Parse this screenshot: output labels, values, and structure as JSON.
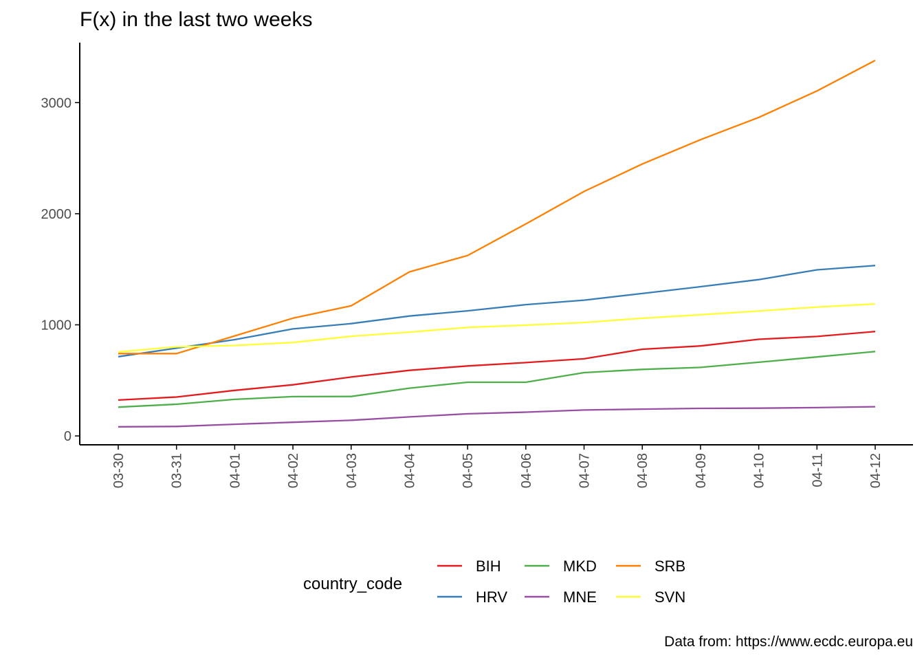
{
  "chart_data": {
    "type": "line",
    "title": "F(x) in the last two weeks",
    "xlabel": "",
    "ylabel": "",
    "x": [
      "03-30",
      "03-31",
      "04-01",
      "04-02",
      "04-03",
      "04-04",
      "04-05",
      "04-06",
      "04-07",
      "04-08",
      "04-09",
      "04-10",
      "04-11",
      "04-12"
    ],
    "ylim": [
      -80,
      3540
    ],
    "yticks": [
      0,
      1000,
      2000,
      3000
    ],
    "grid": false,
    "legend_title": "country_code",
    "legend_position": "bottom",
    "series": [
      {
        "name": "BIH",
        "color": "#e41a1c",
        "values": [
          323,
          350,
          410,
          460,
          530,
          590,
          630,
          660,
          694,
          780,
          810,
          870,
          895,
          940
        ]
      },
      {
        "name": "HRV",
        "color": "#377eb8",
        "values": [
          713,
          790,
          867,
          963,
          1011,
          1079,
          1126,
          1182,
          1222,
          1282,
          1343,
          1407,
          1495,
          1534
        ]
      },
      {
        "name": "MKD",
        "color": "#4daf4a",
        "values": [
          259,
          285,
          329,
          354,
          355,
          430,
          483,
          483,
          570,
          599,
          617,
          663,
          711,
          760
        ]
      },
      {
        "name": "MNE",
        "color": "#984ea3",
        "values": [
          82,
          85,
          105,
          123,
          141,
          171,
          199,
          214,
          233,
          241,
          248,
          250,
          255,
          263
        ]
      },
      {
        "name": "SRB",
        "color": "#ff7f00",
        "values": [
          741,
          741,
          900,
          1060,
          1171,
          1476,
          1624,
          1908,
          2200,
          2447,
          2666,
          2867,
          3105,
          3380
        ]
      },
      {
        "name": "SVN",
        "color": "#ffff33",
        "values": [
          756,
          802,
          814,
          841,
          897,
          934,
          977,
          997,
          1021,
          1059,
          1091,
          1124,
          1160,
          1188
        ]
      }
    ],
    "caption": "Data from: https://www.ecdc.europa.eu"
  }
}
